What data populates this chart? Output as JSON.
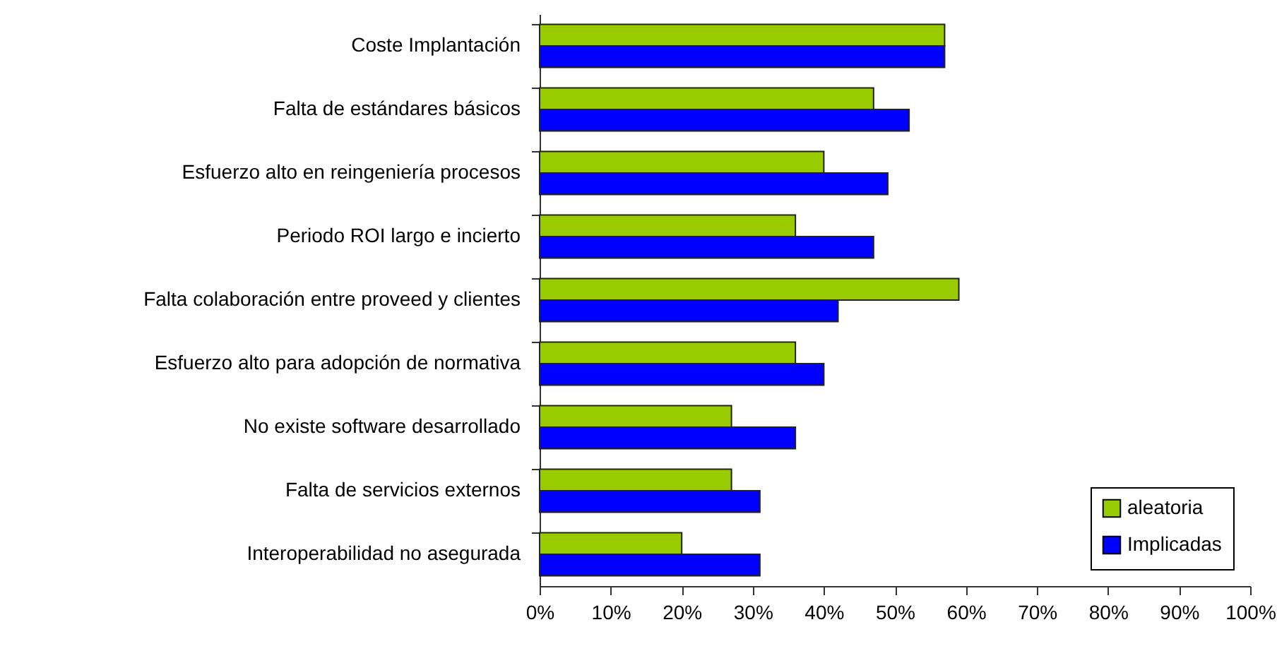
{
  "chart_data": {
    "type": "bar",
    "orientation": "horizontal",
    "categories": [
      "Coste Implantación",
      "Falta de estándares básicos",
      "Esfuerzo alto en reingeniería procesos",
      "Periodo ROI largo e incierto",
      "Falta colaboración entre proveed y clientes",
      "Esfuerzo alto para adopción de normativa",
      "No existe software desarrollado",
      "Falta de servicios externos",
      "Interoperabilidad no asegurada"
    ],
    "series": [
      {
        "name": "aleatoria",
        "color": "#99cc00",
        "values": [
          57,
          47,
          40,
          36,
          59,
          36,
          27,
          27,
          20
        ]
      },
      {
        "name": "Implicadas",
        "color": "#0000ff",
        "values": [
          57,
          52,
          49,
          47,
          42,
          40,
          36,
          31,
          31
        ]
      }
    ],
    "xlim": [
      0,
      100
    ],
    "xticks": [
      {
        "value": 0,
        "label": "0%"
      },
      {
        "value": 10,
        "label": "10%"
      },
      {
        "value": 20,
        "label": "20%"
      },
      {
        "value": 30,
        "label": "30%"
      },
      {
        "value": 40,
        "label": "40%"
      },
      {
        "value": 50,
        "label": "50%"
      },
      {
        "value": 60,
        "label": "60%"
      },
      {
        "value": 70,
        "label": "70%"
      },
      {
        "value": 80,
        "label": "80%"
      },
      {
        "value": 90,
        "label": "90%"
      },
      {
        "value": 100,
        "label": "100%"
      }
    ],
    "grid": false,
    "legend": "bottom right"
  }
}
